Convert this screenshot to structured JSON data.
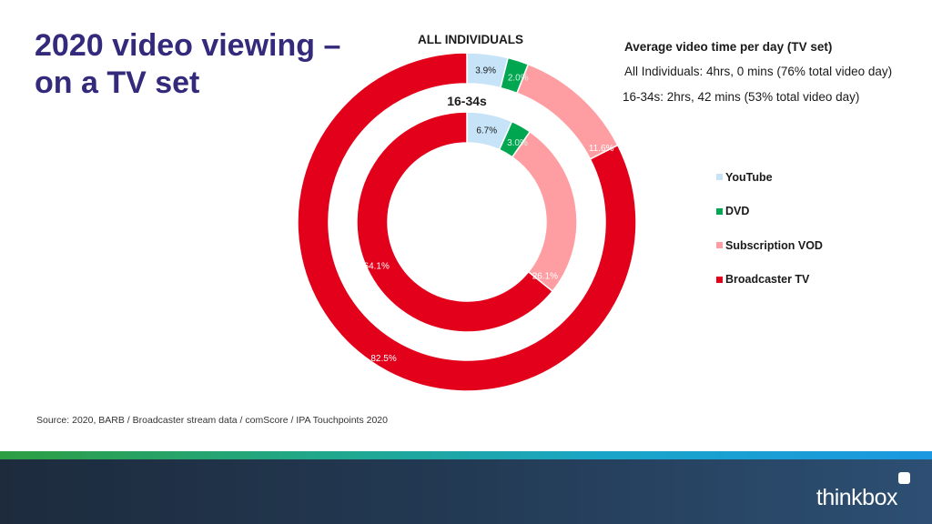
{
  "title_lines": [
    "2020 video viewing –",
    "on a TV set"
  ],
  "info": {
    "heading": "Average video time per day (TV set)",
    "all_individuals": "All Individuals: 4hrs, 0 mins (76% total video day)",
    "young": "16-34s: 2hrs, 42 mins (53% total video day)"
  },
  "source": "Source: 2020, BARB / Broadcaster stream data / comScore / IPA Touchpoints 2020",
  "logo": "thinkbox",
  "chart_data": {
    "type": "pie",
    "variant": "doughnut",
    "categories": [
      "YouTube",
      "DVD",
      "Subscription VOD",
      "Broadcaster TV"
    ],
    "colors": [
      "#c6e3f7",
      "#00a650",
      "#ff9ea2",
      "#e2001a"
    ],
    "series": [
      {
        "name": "ALL INDIVIDUALS",
        "ring": "outer",
        "values": [
          3.9,
          2.0,
          11.6,
          82.5
        ],
        "labels": [
          "3.9%",
          "2.0%",
          "11.6%",
          "82.5%"
        ]
      },
      {
        "name": "16-34s",
        "ring": "inner",
        "values": [
          6.7,
          3.0,
          26.1,
          64.1
        ],
        "labels": [
          "6.7%",
          "3.0%",
          "26.1%",
          "64.1%"
        ]
      }
    ],
    "legend_position": "right"
  }
}
